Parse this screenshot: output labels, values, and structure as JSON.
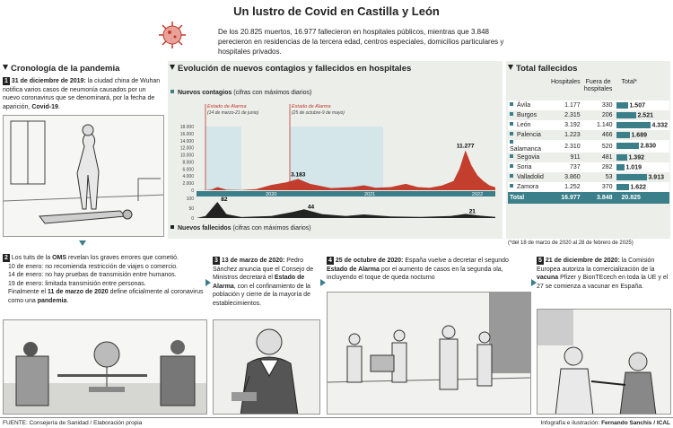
{
  "header": {
    "title": "Un lustro de Covid en Castilla y León",
    "intro": "De los 20.825 muertos, 16.977 fallecieron en hospitales públicos, mientras que 3.848 perecieron en residencias de la tercera edad, centros especiales, domicilios particulares y hospitales privados."
  },
  "cronologia": {
    "title": "Cronología de la pandemia",
    "item1_num": "1",
    "item1_date": "31 de diciembre de 2019:",
    "item1_text": "la ciudad china de Wuhan notifica varios casos de neumonía causados por un nuevo coronavirus que se denominará, por la fecha de aparición,",
    "item1_bold": "Covid-19",
    "item2_num": "2",
    "item2_text1": "Los tuits de la",
    "item2_oms": "OMS",
    "item2_text2": "revelan los graves errores que cometió.",
    "item2_l1": "10 de enero: no recomienda restricción de viajes o comercio.",
    "item2_l2": "14 de enero: no hay pruebas de transmisión entre humanos.",
    "item2_l3": "19 de enero: limitada transmisión entre personas.",
    "item2_l4a": "Finalmente el",
    "item2_l4b": "11 de marzo de 2020",
    "item2_l4c": "define oficialmente al coronavirus como una",
    "item2_l4d": "pandemia",
    "item3_num": "3",
    "item3_date": "13 de marzo de 2020:",
    "item3_text": "Pedro Sánchez anuncia que el Consejo de Ministros decretará el",
    "item3_bold": "Estado de Alarma",
    "item3_text2": ", con el confinamiento de la población y cierre de la mayoría de establecimientos.",
    "item4_num": "4",
    "item4_date": "25 de octubre de 2020:",
    "item4_text": "España vuelve a decretar el segundo",
    "item4_bold": "Estado de Alarma",
    "item4_text2": "por el aumento de casos en la segunda ola, incluyendo el toque de queda nocturno",
    "item5_num": "5",
    "item5_date": "21 de diciembre de 2020:",
    "item5_text": "la Comisión Europea autoriza la comercialización de la",
    "item5_bold": "vacuna",
    "item5_text2": "Pfizer y BionTEcech en toda la UE y el 27 se comienza a vacunar en España."
  },
  "evolucion": {
    "title": "Evolución de nuevos contagios y fallecidos en hospitales",
    "contagios_label": "Nuevos contagios",
    "contagios_note": "(cifras con máximos diarios)",
    "fallecidos_label": "Nuevos fallecidos",
    "fallecidos_note": "(cifras con máximos diarios)",
    "alarma1_label": "Estado de Alarma",
    "alarma1_dates": "(14 de marzo-21 de junio)",
    "alarma2_label": "Estado de Alarma",
    "alarma2_dates": "(25 de octubre-9 de mayo)"
  },
  "chart_data": [
    {
      "type": "area",
      "series": [
        {
          "name": "Nuevos contagios",
          "peaks": [
            {
              "label": "3.183",
              "value": 3183
            },
            {
              "label": "11.277",
              "value": 11277
            }
          ]
        }
      ],
      "yticks": [
        "0",
        "2.000",
        "4.000",
        "6.000",
        "8.000",
        "10.000",
        "12.000",
        "14.000",
        "16.000",
        "18.000"
      ],
      "ylim": [
        0,
        18000
      ],
      "years": [
        "2020",
        "2021",
        "2022"
      ]
    },
    {
      "type": "area",
      "series": [
        {
          "name": "Nuevos fallecidos",
          "peaks": [
            {
              "label": "82",
              "value": 82
            },
            {
              "label": "44",
              "value": 44
            },
            {
              "label": "21",
              "value": 21
            }
          ]
        }
      ],
      "yticks": [
        "0",
        "50",
        "100"
      ],
      "ylim": [
        0,
        100
      ]
    }
  ],
  "total": {
    "title": "Total fallecidos",
    "col_hosp": "Hospitales",
    "col_fuera": "Fuera de hospitales",
    "col_total": "Total*",
    "rows": [
      {
        "prov": "Ávila",
        "hosp": "1.177",
        "fuera": "330",
        "total": "1.507",
        "v": 1507
      },
      {
        "prov": "Burgos",
        "hosp": "2.315",
        "fuera": "206",
        "total": "2.521",
        "v": 2521
      },
      {
        "prov": "León",
        "hosp": "3.192",
        "fuera": "1.140",
        "total": "4.332",
        "v": 4332
      },
      {
        "prov": "Palencia",
        "hosp": "1.223",
        "fuera": "466",
        "total": "1.689",
        "v": 1689
      },
      {
        "prov": "Salamanca",
        "hosp": "2.310",
        "fuera": "520",
        "total": "2.830",
        "v": 2830
      },
      {
        "prov": "Segovia",
        "hosp": "911",
        "fuera": "481",
        "total": "1.392",
        "v": 1392
      },
      {
        "prov": "Soria",
        "hosp": "737",
        "fuera": "282",
        "total": "1.019",
        "v": 1019
      },
      {
        "prov": "Valladolid",
        "hosp": "3.860",
        "fuera": "53",
        "total": "3.913",
        "v": 3913
      },
      {
        "prov": "Zamora",
        "hosp": "1.252",
        "fuera": "370",
        "total": "1.622",
        "v": 1622
      }
    ],
    "total_label": "Total",
    "total_hosp": "16.977",
    "total_fuera": "3.848",
    "total_total": "20.825",
    "footnote": "(*del 18 de marzo de 2020 al 28 de febrero de 2025)"
  },
  "footer": {
    "source": "FUENTE: Consejería de Sanidad / Elaboración propia",
    "credit_prefix": "Infografía e ilustración:",
    "credit_name": "Fernando Sanchis / ICAL"
  },
  "colors": {
    "accent": "#3a7f8a",
    "alarm": "#c0392b",
    "area": "#c02a1a",
    "dark": "#222222",
    "band": "#cfe3ea"
  }
}
